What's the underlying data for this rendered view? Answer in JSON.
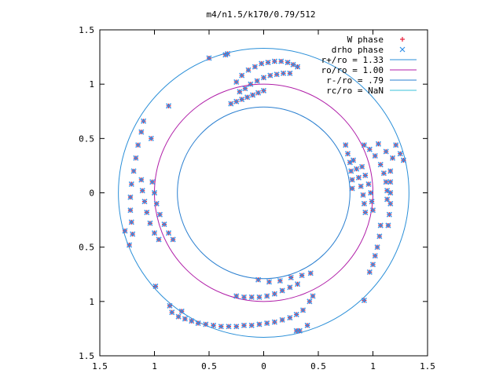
{
  "chart_data": {
    "type": "scatter",
    "title": "m4/n1.5/k170/0.79/512",
    "xlabel": "",
    "ylabel": "",
    "xlim": [
      -1.5,
      1.5
    ],
    "ylim": [
      -1.5,
      1.5
    ],
    "x_ticks": [
      -1.5,
      -1,
      -0.5,
      0,
      0.5,
      1,
      1.5
    ],
    "y_ticks": [
      -1.5,
      -1,
      -0.5,
      0,
      0.5,
      1,
      1.5
    ],
    "x_tick_labels": [
      "1.5",
      "1",
      "0.5",
      "0",
      "0.5",
      "1",
      "1.5"
    ],
    "y_tick_labels": [
      "1.5",
      "1",
      "0.5",
      "0",
      "0.5",
      "1",
      "1.5"
    ],
    "grid": false,
    "legend_position": "top-right",
    "legend": [
      {
        "label": "W phase",
        "marker": "+",
        "color": "#e8203c"
      },
      {
        "label": "drho phase",
        "marker": "x",
        "color": "#2f8fe8"
      },
      {
        "label": "r+/ro = 1.33",
        "line": true,
        "color": "#2a8fd8"
      },
      {
        "label": "ro/ro = 1.00",
        "line": true,
        "color": "#b01ea8"
      },
      {
        "label": "r-/ro = .79",
        "line": true,
        "color": "#2a7fd0"
      },
      {
        "label": "rc/ro = NaN",
        "line": true,
        "color": "#38c0d8"
      }
    ],
    "circles": [
      {
        "name": "r+/ro = 1.33",
        "r": 1.33,
        "color": "#2a8fd8"
      },
      {
        "name": "ro/ro = 1.00",
        "r": 1.0,
        "color": "#b01ea8"
      },
      {
        "name": "r-/ro = .79",
        "r": 0.79,
        "color": "#2a7fd0"
      }
    ],
    "series": [
      {
        "name": "W phase",
        "color": "#e8203c",
        "points": [
          [
            -0.25,
            1.02
          ],
          [
            -0.2,
            1.08
          ],
          [
            -0.14,
            1.13
          ],
          [
            -0.08,
            1.16
          ],
          [
            -0.02,
            1.19
          ],
          [
            0.04,
            1.2
          ],
          [
            0.1,
            1.21
          ],
          [
            0.16,
            1.21
          ],
          [
            0.22,
            1.2
          ],
          [
            0.27,
            1.18
          ],
          [
            0.31,
            1.16
          ],
          [
            -0.22,
            0.93
          ],
          [
            -0.17,
            0.96
          ],
          [
            -0.12,
            1.0
          ],
          [
            -0.06,
            1.03
          ],
          [
            0.0,
            1.06
          ],
          [
            0.06,
            1.08
          ],
          [
            0.12,
            1.09
          ],
          [
            0.18,
            1.1
          ],
          [
            0.24,
            1.1
          ],
          [
            -0.3,
            0.82
          ],
          [
            -0.25,
            0.84
          ],
          [
            -0.2,
            0.86
          ],
          [
            -0.15,
            0.88
          ],
          [
            -0.1,
            0.9
          ],
          [
            -0.05,
            0.92
          ],
          [
            0.0,
            0.94
          ],
          [
            -0.5,
            1.24
          ],
          [
            -0.35,
            1.27
          ],
          [
            -0.33,
            1.28
          ],
          [
            -0.87,
            0.8
          ],
          [
            -1.03,
            0.5
          ],
          [
            -1.1,
            0.66
          ],
          [
            -1.12,
            0.56
          ],
          [
            -1.15,
            0.44
          ],
          [
            -1.17,
            0.32
          ],
          [
            -1.19,
            0.2
          ],
          [
            -1.21,
            0.08
          ],
          [
            -1.22,
            -0.04
          ],
          [
            -1.22,
            -0.16
          ],
          [
            -1.21,
            -0.27
          ],
          [
            -1.2,
            -0.38
          ],
          [
            -1.12,
            0.12
          ],
          [
            -1.11,
            0.02
          ],
          [
            -1.09,
            -0.08
          ],
          [
            -1.07,
            -0.18
          ],
          [
            -1.04,
            -0.28
          ],
          [
            -1.0,
            -0.37
          ],
          [
            -0.96,
            -0.43
          ],
          [
            -1.02,
            0.1
          ],
          [
            -1.0,
            0.0
          ],
          [
            -0.98,
            -0.1
          ],
          [
            -0.95,
            -0.2
          ],
          [
            -0.91,
            -0.29
          ],
          [
            -0.87,
            -0.37
          ],
          [
            -0.83,
            -0.43
          ],
          [
            -1.27,
            -0.35
          ],
          [
            -1.23,
            -0.48
          ],
          [
            -0.84,
            -1.1
          ],
          [
            -0.78,
            -1.14
          ],
          [
            -0.72,
            -1.16
          ],
          [
            -0.66,
            -1.18
          ],
          [
            -0.6,
            -1.2
          ],
          [
            -0.53,
            -1.21
          ],
          [
            -0.46,
            -1.22
          ],
          [
            -0.39,
            -1.23
          ],
          [
            -0.32,
            -1.23
          ],
          [
            -0.25,
            -1.23
          ],
          [
            -0.18,
            -1.22
          ],
          [
            -0.11,
            -1.22
          ],
          [
            -0.04,
            -1.21
          ],
          [
            0.03,
            -1.2
          ],
          [
            0.1,
            -1.19
          ],
          [
            0.17,
            -1.17
          ],
          [
            0.24,
            -1.15
          ],
          [
            0.3,
            -1.12
          ],
          [
            0.36,
            -1.08
          ],
          [
            0.42,
            -1.0
          ],
          [
            0.45,
            -0.95
          ],
          [
            -0.25,
            -0.95
          ],
          [
            -0.18,
            -0.96
          ],
          [
            -0.11,
            -0.96
          ],
          [
            -0.04,
            -0.96
          ],
          [
            0.03,
            -0.95
          ],
          [
            0.1,
            -0.93
          ],
          [
            0.17,
            -0.9
          ],
          [
            0.24,
            -0.87
          ],
          [
            0.31,
            -0.84
          ],
          [
            -0.05,
            -0.8
          ],
          [
            0.05,
            -0.82
          ],
          [
            0.15,
            -0.81
          ],
          [
            0.25,
            -0.78
          ],
          [
            0.35,
            -0.76
          ],
          [
            0.43,
            -0.74
          ],
          [
            -0.99,
            -0.86
          ],
          [
            -0.86,
            -1.04
          ],
          [
            -0.75,
            -1.09
          ],
          [
            0.4,
            -1.22
          ],
          [
            0.3,
            -1.27
          ],
          [
            0.33,
            -1.27
          ],
          [
            0.92,
            -0.99
          ],
          [
            0.75,
            0.44
          ],
          [
            0.77,
            0.36
          ],
          [
            0.79,
            0.28
          ],
          [
            0.8,
            0.2
          ],
          [
            0.81,
            0.12
          ],
          [
            0.81,
            0.04
          ],
          [
            0.82,
            0.3
          ],
          [
            0.85,
            0.22
          ],
          [
            0.87,
            0.14
          ],
          [
            0.89,
            0.06
          ],
          [
            0.91,
            -0.02
          ],
          [
            0.92,
            -0.1
          ],
          [
            0.93,
            -0.18
          ],
          [
            0.9,
            0.24
          ],
          [
            0.93,
            0.16
          ],
          [
            0.96,
            0.08
          ],
          [
            0.98,
            0.0
          ],
          [
            0.99,
            -0.08
          ],
          [
            1.0,
            -0.16
          ],
          [
            0.92,
            0.44
          ],
          [
            0.97,
            0.4
          ],
          [
            1.02,
            0.34
          ],
          [
            1.07,
            0.26
          ],
          [
            1.1,
            0.18
          ],
          [
            1.12,
            0.1
          ],
          [
            1.13,
            0.02
          ],
          [
            1.13,
            -0.06
          ],
          [
            1.07,
            -0.3
          ],
          [
            1.06,
            -0.4
          ],
          [
            1.04,
            -0.5
          ],
          [
            1.02,
            -0.58
          ],
          [
            1.0,
            -0.66
          ],
          [
            0.97,
            -0.73
          ],
          [
            1.16,
            0.2
          ],
          [
            1.16,
            0.1
          ],
          [
            1.16,
            0.0
          ],
          [
            1.16,
            -0.1
          ],
          [
            1.15,
            -0.2
          ],
          [
            1.14,
            -0.3
          ],
          [
            1.21,
            0.44
          ],
          [
            1.25,
            0.36
          ],
          [
            1.28,
            0.3
          ],
          [
            1.05,
            0.45
          ],
          [
            1.12,
            0.38
          ],
          [
            1.18,
            0.32
          ]
        ]
      },
      {
        "name": "drho phase",
        "color": "#2f8fe8",
        "points": [
          [
            -0.25,
            1.02
          ],
          [
            -0.2,
            1.08
          ],
          [
            -0.14,
            1.13
          ],
          [
            -0.08,
            1.16
          ],
          [
            -0.02,
            1.19
          ],
          [
            0.04,
            1.2
          ],
          [
            0.1,
            1.21
          ],
          [
            0.16,
            1.21
          ],
          [
            0.22,
            1.2
          ],
          [
            0.27,
            1.18
          ],
          [
            0.31,
            1.16
          ],
          [
            -0.22,
            0.93
          ],
          [
            -0.17,
            0.96
          ],
          [
            -0.12,
            1.0
          ],
          [
            -0.06,
            1.03
          ],
          [
            0.0,
            1.06
          ],
          [
            0.06,
            1.08
          ],
          [
            0.12,
            1.09
          ],
          [
            0.18,
            1.1
          ],
          [
            0.24,
            1.1
          ],
          [
            -0.3,
            0.82
          ],
          [
            -0.25,
            0.84
          ],
          [
            -0.2,
            0.86
          ],
          [
            -0.15,
            0.88
          ],
          [
            -0.1,
            0.9
          ],
          [
            -0.05,
            0.92
          ],
          [
            0.0,
            0.94
          ],
          [
            -0.5,
            1.24
          ],
          [
            -0.35,
            1.27
          ],
          [
            -0.33,
            1.28
          ],
          [
            -0.87,
            0.8
          ],
          [
            -1.03,
            0.5
          ],
          [
            -1.1,
            0.66
          ],
          [
            -1.12,
            0.56
          ],
          [
            -1.15,
            0.44
          ],
          [
            -1.17,
            0.32
          ],
          [
            -1.19,
            0.2
          ],
          [
            -1.21,
            0.08
          ],
          [
            -1.22,
            -0.04
          ],
          [
            -1.22,
            -0.16
          ],
          [
            -1.21,
            -0.27
          ],
          [
            -1.2,
            -0.38
          ],
          [
            -1.12,
            0.12
          ],
          [
            -1.11,
            0.02
          ],
          [
            -1.09,
            -0.08
          ],
          [
            -1.07,
            -0.18
          ],
          [
            -1.04,
            -0.28
          ],
          [
            -1.0,
            -0.37
          ],
          [
            -0.96,
            -0.43
          ],
          [
            -1.02,
            0.1
          ],
          [
            -1.0,
            0.0
          ],
          [
            -0.98,
            -0.1
          ],
          [
            -0.95,
            -0.2
          ],
          [
            -0.91,
            -0.29
          ],
          [
            -0.87,
            -0.37
          ],
          [
            -0.83,
            -0.43
          ],
          [
            -1.27,
            -0.35
          ],
          [
            -1.23,
            -0.48
          ],
          [
            -0.84,
            -1.1
          ],
          [
            -0.78,
            -1.14
          ],
          [
            -0.72,
            -1.16
          ],
          [
            -0.66,
            -1.18
          ],
          [
            -0.6,
            -1.2
          ],
          [
            -0.53,
            -1.21
          ],
          [
            -0.46,
            -1.22
          ],
          [
            -0.39,
            -1.23
          ],
          [
            -0.32,
            -1.23
          ],
          [
            -0.25,
            -1.23
          ],
          [
            -0.18,
            -1.22
          ],
          [
            -0.11,
            -1.22
          ],
          [
            -0.04,
            -1.21
          ],
          [
            0.03,
            -1.2
          ],
          [
            0.1,
            -1.19
          ],
          [
            0.17,
            -1.17
          ],
          [
            0.24,
            -1.15
          ],
          [
            0.3,
            -1.12
          ],
          [
            0.36,
            -1.08
          ],
          [
            0.42,
            -1.0
          ],
          [
            0.45,
            -0.95
          ],
          [
            -0.25,
            -0.95
          ],
          [
            -0.18,
            -0.96
          ],
          [
            -0.11,
            -0.96
          ],
          [
            -0.04,
            -0.96
          ],
          [
            0.03,
            -0.95
          ],
          [
            0.1,
            -0.93
          ],
          [
            0.17,
            -0.9
          ],
          [
            0.24,
            -0.87
          ],
          [
            0.31,
            -0.84
          ],
          [
            -0.05,
            -0.8
          ],
          [
            0.05,
            -0.82
          ],
          [
            0.15,
            -0.81
          ],
          [
            0.25,
            -0.78
          ],
          [
            0.35,
            -0.76
          ],
          [
            0.43,
            -0.74
          ],
          [
            -0.99,
            -0.86
          ],
          [
            -0.86,
            -1.04
          ],
          [
            -0.75,
            -1.09
          ],
          [
            0.4,
            -1.22
          ],
          [
            0.3,
            -1.27
          ],
          [
            0.33,
            -1.27
          ],
          [
            0.92,
            -0.99
          ],
          [
            0.75,
            0.44
          ],
          [
            0.77,
            0.36
          ],
          [
            0.79,
            0.28
          ],
          [
            0.8,
            0.2
          ],
          [
            0.81,
            0.12
          ],
          [
            0.81,
            0.04
          ],
          [
            0.82,
            0.3
          ],
          [
            0.85,
            0.22
          ],
          [
            0.87,
            0.14
          ],
          [
            0.89,
            0.06
          ],
          [
            0.91,
            -0.02
          ],
          [
            0.92,
            -0.1
          ],
          [
            0.93,
            -0.18
          ],
          [
            0.9,
            0.24
          ],
          [
            0.93,
            0.16
          ],
          [
            0.96,
            0.08
          ],
          [
            0.98,
            0.0
          ],
          [
            0.99,
            -0.08
          ],
          [
            1.0,
            -0.16
          ],
          [
            0.92,
            0.44
          ],
          [
            0.97,
            0.4
          ],
          [
            1.02,
            0.34
          ],
          [
            1.07,
            0.26
          ],
          [
            1.1,
            0.18
          ],
          [
            1.12,
            0.1
          ],
          [
            1.13,
            0.02
          ],
          [
            1.13,
            -0.06
          ],
          [
            1.07,
            -0.3
          ],
          [
            1.06,
            -0.4
          ],
          [
            1.04,
            -0.5
          ],
          [
            1.02,
            -0.58
          ],
          [
            1.0,
            -0.66
          ],
          [
            0.97,
            -0.73
          ],
          [
            1.16,
            0.2
          ],
          [
            1.16,
            0.1
          ],
          [
            1.16,
            0.0
          ],
          [
            1.16,
            -0.1
          ],
          [
            1.15,
            -0.2
          ],
          [
            1.14,
            -0.3
          ],
          [
            1.21,
            0.44
          ],
          [
            1.25,
            0.36
          ],
          [
            1.28,
            0.3
          ],
          [
            1.05,
            0.45
          ],
          [
            1.12,
            0.38
          ],
          [
            1.18,
            0.32
          ]
        ]
      }
    ]
  }
}
